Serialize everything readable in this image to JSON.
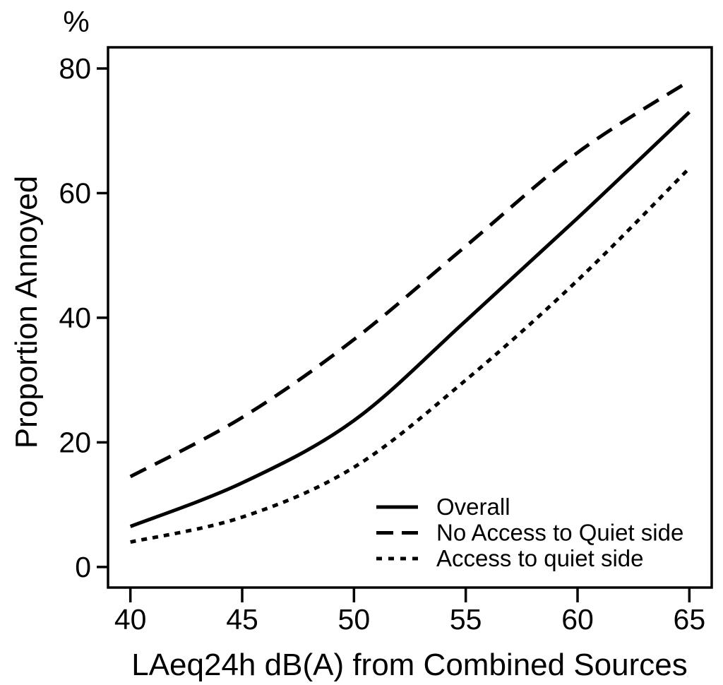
{
  "figure": {
    "percent_label": "%",
    "x_axis_title": "LAeq24h dB(A) from Combined Sources",
    "y_axis_title": "Proportion Annoyed"
  },
  "chart_data": {
    "type": "line",
    "title": "",
    "xlabel": "LAeq24h dB(A) from Combined Sources",
    "ylabel": "Proportion Annoyed",
    "y_unit": "%",
    "x": [
      40,
      45,
      50,
      55,
      60,
      65
    ],
    "x_ticks": [
      "40",
      "45",
      "50",
      "55",
      "60",
      "65"
    ],
    "y_ticks": [
      "0",
      "20",
      "40",
      "60",
      "80"
    ],
    "xlim": [
      39,
      66
    ],
    "ylim": [
      -3.3,
      83.4
    ],
    "grid": false,
    "legend_position": "inside-bottom-right",
    "series": [
      {
        "name": "Overall",
        "line_style": "solid",
        "values": [
          6.5,
          13.5,
          23.5,
          39.5,
          56.0,
          73.0
        ]
      },
      {
        "name": "No Access to Quiet side",
        "line_style": "dashed",
        "values": [
          14.5,
          24.0,
          36.5,
          51.5,
          66.5,
          78.0
        ]
      },
      {
        "name": "Access to quiet side",
        "line_style": "dotted",
        "values": [
          4.0,
          8.0,
          16.0,
          30.0,
          46.0,
          64.0
        ]
      }
    ],
    "colors": {
      "line": "#000000",
      "background": "#ffffff"
    }
  }
}
